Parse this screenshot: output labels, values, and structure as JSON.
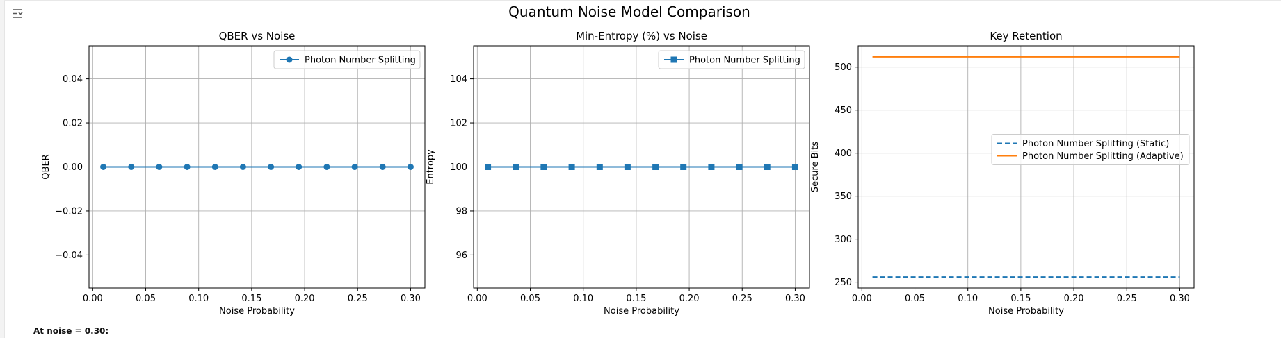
{
  "figure": {
    "suptitle": "Quantum Noise Model Comparison"
  },
  "status_text": "At noise = 0.30:",
  "icons": {
    "output_toggle": "output-collapse-icon"
  },
  "chart_data": [
    {
      "type": "line",
      "title": "QBER vs Noise",
      "xlabel": "Noise Probability",
      "ylabel": "QBER",
      "xlim": [
        -0.0035,
        0.3135
      ],
      "ylim": [
        -0.055,
        0.055
      ],
      "xticks": [
        0.0,
        0.05,
        0.1,
        0.15,
        0.2,
        0.25,
        0.3
      ],
      "xtick_labels": [
        "0.00",
        "0.05",
        "0.10",
        "0.15",
        "0.20",
        "0.25",
        "0.30"
      ],
      "yticks": [
        -0.04,
        -0.02,
        0.0,
        0.02,
        0.04
      ],
      "ytick_labels": [
        "−0.04",
        "−0.02",
        "0.00",
        "0.02",
        "0.04"
      ],
      "grid": true,
      "legend": "upper right",
      "x": [
        0.01,
        0.0364,
        0.0627,
        0.0891,
        0.1155,
        0.1418,
        0.1682,
        0.1945,
        0.2209,
        0.2473,
        0.2736,
        0.3
      ],
      "series": [
        {
          "name": "Photon Number Splitting",
          "color": "#1f77b4",
          "marker": "circle",
          "linestyle": "solid",
          "values": [
            0,
            0,
            0,
            0,
            0,
            0,
            0,
            0,
            0,
            0,
            0,
            0
          ]
        }
      ]
    },
    {
      "type": "line",
      "title": "Min-Entropy (%) vs Noise",
      "xlabel": "Noise Probability",
      "ylabel": "Entropy",
      "xlim": [
        -0.0035,
        0.3135
      ],
      "ylim": [
        94.5,
        105.5
      ],
      "xticks": [
        0.0,
        0.05,
        0.1,
        0.15,
        0.2,
        0.25,
        0.3
      ],
      "xtick_labels": [
        "0.00",
        "0.05",
        "0.10",
        "0.15",
        "0.20",
        "0.25",
        "0.30"
      ],
      "yticks": [
        96,
        98,
        100,
        102,
        104
      ],
      "ytick_labels": [
        "96",
        "98",
        "100",
        "102",
        "104"
      ],
      "grid": true,
      "legend": "upper right",
      "x": [
        0.01,
        0.0364,
        0.0627,
        0.0891,
        0.1155,
        0.1418,
        0.1682,
        0.1945,
        0.2209,
        0.2473,
        0.2736,
        0.3
      ],
      "series": [
        {
          "name": "Photon Number Splitting",
          "color": "#1f77b4",
          "marker": "square",
          "linestyle": "solid",
          "values": [
            100,
            100,
            100,
            100,
            100,
            100,
            100,
            100,
            100,
            100,
            100,
            100
          ]
        }
      ]
    },
    {
      "type": "line",
      "title": "Key Retention",
      "xlabel": "Noise Probability",
      "ylabel": "Secure Bits",
      "xlim": [
        -0.0035,
        0.3135
      ],
      "ylim": [
        243.2,
        524.8
      ],
      "xticks": [
        0.0,
        0.05,
        0.1,
        0.15,
        0.2,
        0.25,
        0.3
      ],
      "xtick_labels": [
        "0.00",
        "0.05",
        "0.10",
        "0.15",
        "0.20",
        "0.25",
        "0.30"
      ],
      "yticks": [
        250,
        300,
        350,
        400,
        450,
        500
      ],
      "ytick_labels": [
        "250",
        "300",
        "350",
        "400",
        "450",
        "500"
      ],
      "grid": true,
      "legend": "center right",
      "x": [
        0.01,
        0.3
      ],
      "series": [
        {
          "name": "Photon Number Splitting (Static)",
          "color": "#1f77b4",
          "marker": "none",
          "linestyle": "dashed",
          "values": [
            256,
            256
          ]
        },
        {
          "name": "Photon Number Splitting (Adaptive)",
          "color": "#ff7f0e",
          "marker": "none",
          "linestyle": "solid",
          "values": [
            512,
            512
          ]
        }
      ]
    }
  ]
}
